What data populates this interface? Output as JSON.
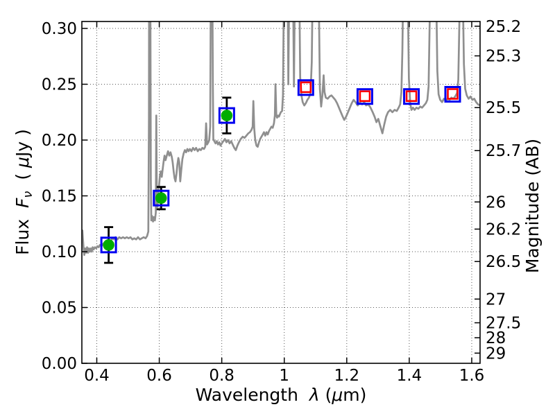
{
  "chart_data": {
    "type": "line",
    "title": "",
    "xlabel_parts": [
      {
        "t": "Wavelength  "
      },
      {
        "t": "λ",
        "i": 1
      },
      {
        "t": " ("
      },
      {
        "t": "μ",
        "i": 1
      },
      {
        "t": "m)"
      }
    ],
    "ylabel_left_parts": [
      {
        "t": "Flux  "
      },
      {
        "t": "F",
        "i": 1
      },
      {
        "t": "ν",
        "s": 1
      },
      {
        "t": "  ( "
      },
      {
        "t": "μ",
        "i": 1
      },
      {
        "t": "Jy )"
      }
    ],
    "ylabel_right": "Magnitude (AB)",
    "xlim": [
      0.352,
      1.627
    ],
    "ylim_flux": [
      0,
      0.306
    ],
    "grid": true,
    "legend": false,
    "ab_zeropoint_ujy": 23.9,
    "x_ticks": [
      {
        "v": 0.4,
        "label": "0.4"
      },
      {
        "v": 0.6,
        "label": "0.6"
      },
      {
        "v": 0.8,
        "label": "0.8"
      },
      {
        "v": 1.0,
        "label": "1"
      },
      {
        "v": 1.2,
        "label": "1.2"
      },
      {
        "v": 1.4,
        "label": "1.4"
      },
      {
        "v": 1.6,
        "label": "1.6"
      }
    ],
    "flux_ticks": [
      {
        "v": 0.0,
        "label": "0.00"
      },
      {
        "v": 0.05,
        "label": "0.05"
      },
      {
        "v": 0.1,
        "label": "0.10"
      },
      {
        "v": 0.15,
        "label": "0.15"
      },
      {
        "v": 0.2,
        "label": "0.20"
      },
      {
        "v": 0.25,
        "label": "0.25"
      },
      {
        "v": 0.3,
        "label": "0.30"
      }
    ],
    "mag_ticks": [
      {
        "v": 25.2,
        "label": "25.2"
      },
      {
        "v": 25.3,
        "label": "25.3"
      },
      {
        "v": 25.5,
        "label": "25.5"
      },
      {
        "v": 25.7,
        "label": "25.7"
      },
      {
        "v": 26,
        "label": "26"
      },
      {
        "v": 26.2,
        "label": "26.2"
      },
      {
        "v": 26.5,
        "label": "26.5"
      },
      {
        "v": 27,
        "label": "27"
      },
      {
        "v": 27.5,
        "label": "27.5"
      },
      {
        "v": 28,
        "label": "28"
      },
      {
        "v": 29,
        "label": "29"
      }
    ],
    "colors": {
      "spectrum": "#8f8f8f",
      "blue_square": "#0000f0",
      "green_circle": "#00ad00",
      "red_square": "#ff0000",
      "error_bar": "#000000",
      "grid": "#555555",
      "frame": "#000000",
      "background": "#ffffff"
    },
    "photometry": {
      "observed": [
        {
          "wavelength": 0.438,
          "flux": 0.106,
          "flux_err": 0.016
        },
        {
          "wavelength": 0.606,
          "flux": 0.148,
          "flux_err": 0.01
        },
        {
          "wavelength": 0.816,
          "flux": 0.222,
          "flux_err": 0.016
        }
      ],
      "model_blue_squares": [
        {
          "wavelength": 0.438,
          "flux": 0.106
        },
        {
          "wavelength": 0.606,
          "flux": 0.148
        },
        {
          "wavelength": 0.816,
          "flux": 0.222
        },
        {
          "wavelength": 1.069,
          "flux": 0.247
        },
        {
          "wavelength": 1.258,
          "flux": 0.239
        },
        {
          "wavelength": 1.407,
          "flux": 0.239
        },
        {
          "wavelength": 1.539,
          "flux": 0.241
        }
      ],
      "model_red_squares": [
        {
          "wavelength": 1.069,
          "flux": 0.247
        },
        {
          "wavelength": 1.258,
          "flux": 0.239
        },
        {
          "wavelength": 1.407,
          "flux": 0.239
        },
        {
          "wavelength": 1.539,
          "flux": 0.241
        }
      ]
    },
    "spectrum": [
      [
        0.352,
        0.108
      ],
      [
        0.354,
        0.119
      ],
      [
        0.356,
        0.11
      ],
      [
        0.358,
        0.102
      ],
      [
        0.36,
        0.097
      ],
      [
        0.363,
        0.103
      ],
      [
        0.366,
        0.099
      ],
      [
        0.369,
        0.104
      ],
      [
        0.372,
        0.099
      ],
      [
        0.375,
        0.103
      ],
      [
        0.378,
        0.1
      ],
      [
        0.381,
        0.103
      ],
      [
        0.384,
        0.1
      ],
      [
        0.387,
        0.104
      ],
      [
        0.39,
        0.102
      ],
      [
        0.394,
        0.104
      ],
      [
        0.398,
        0.103
      ],
      [
        0.402,
        0.105
      ],
      [
        0.406,
        0.104
      ],
      [
        0.41,
        0.106
      ],
      [
        0.415,
        0.105
      ],
      [
        0.42,
        0.107
      ],
      [
        0.425,
        0.105
      ],
      [
        0.43,
        0.106
      ],
      [
        0.435,
        0.106
      ],
      [
        0.44,
        0.108
      ],
      [
        0.445,
        0.11
      ],
      [
        0.45,
        0.112
      ],
      [
        0.455,
        0.111
      ],
      [
        0.46,
        0.113
      ],
      [
        0.466,
        0.111
      ],
      [
        0.472,
        0.113
      ],
      [
        0.478,
        0.112
      ],
      [
        0.484,
        0.113
      ],
      [
        0.49,
        0.112
      ],
      [
        0.496,
        0.113
      ],
      [
        0.502,
        0.112
      ],
      [
        0.508,
        0.113
      ],
      [
        0.514,
        0.111
      ],
      [
        0.52,
        0.112
      ],
      [
        0.526,
        0.111
      ],
      [
        0.532,
        0.113
      ],
      [
        0.538,
        0.111
      ],
      [
        0.544,
        0.112
      ],
      [
        0.55,
        0.113
      ],
      [
        0.556,
        0.112
      ],
      [
        0.561,
        0.114
      ],
      [
        0.565,
        0.118
      ],
      [
        0.567,
        0.22
      ],
      [
        0.5675,
        0.34
      ],
      [
        0.5715,
        0.34
      ],
      [
        0.573,
        0.165
      ],
      [
        0.5745,
        0.128
      ],
      [
        0.577,
        0.132
      ],
      [
        0.58,
        0.127
      ],
      [
        0.583,
        0.131
      ],
      [
        0.586,
        0.128
      ],
      [
        0.589,
        0.135
      ],
      [
        0.5905,
        0.222
      ],
      [
        0.592,
        0.152
      ],
      [
        0.594,
        0.14
      ],
      [
        0.596,
        0.149
      ],
      [
        0.599,
        0.158
      ],
      [
        0.602,
        0.168
      ],
      [
        0.605,
        0.172
      ],
      [
        0.608,
        0.167
      ],
      [
        0.611,
        0.174
      ],
      [
        0.614,
        0.181
      ],
      [
        0.617,
        0.186
      ],
      [
        0.62,
        0.182
      ],
      [
        0.624,
        0.186
      ],
      [
        0.628,
        0.19
      ],
      [
        0.632,
        0.186
      ],
      [
        0.636,
        0.189
      ],
      [
        0.64,
        0.185
      ],
      [
        0.643,
        0.18
      ],
      [
        0.646,
        0.172
      ],
      [
        0.649,
        0.166
      ],
      [
        0.652,
        0.163
      ],
      [
        0.655,
        0.17
      ],
      [
        0.658,
        0.178
      ],
      [
        0.661,
        0.184
      ],
      [
        0.664,
        0.18
      ],
      [
        0.667,
        0.163
      ],
      [
        0.67,
        0.172
      ],
      [
        0.674,
        0.183
      ],
      [
        0.678,
        0.188
      ],
      [
        0.682,
        0.191
      ],
      [
        0.686,
        0.189
      ],
      [
        0.69,
        0.192
      ],
      [
        0.694,
        0.19
      ],
      [
        0.698,
        0.192
      ],
      [
        0.703,
        0.19
      ],
      [
        0.708,
        0.193
      ],
      [
        0.713,
        0.191
      ],
      [
        0.718,
        0.193
      ],
      [
        0.723,
        0.19
      ],
      [
        0.728,
        0.192
      ],
      [
        0.733,
        0.191
      ],
      [
        0.738,
        0.193
      ],
      [
        0.743,
        0.192
      ],
      [
        0.747,
        0.194
      ],
      [
        0.75,
        0.215
      ],
      [
        0.753,
        0.196
      ],
      [
        0.757,
        0.198
      ],
      [
        0.76,
        0.2
      ],
      [
        0.763,
        0.212
      ],
      [
        0.765,
        0.34
      ],
      [
        0.77,
        0.34
      ],
      [
        0.7715,
        0.25
      ],
      [
        0.773,
        0.201
      ],
      [
        0.776,
        0.199
      ],
      [
        0.78,
        0.197
      ],
      [
        0.784,
        0.199
      ],
      [
        0.788,
        0.196
      ],
      [
        0.792,
        0.198
      ],
      [
        0.796,
        0.195
      ],
      [
        0.8,
        0.197
      ],
      [
        0.805,
        0.199
      ],
      [
        0.81,
        0.201
      ],
      [
        0.815,
        0.198
      ],
      [
        0.82,
        0.2
      ],
      [
        0.825,
        0.197
      ],
      [
        0.83,
        0.199
      ],
      [
        0.835,
        0.196
      ],
      [
        0.84,
        0.193
      ],
      [
        0.845,
        0.191
      ],
      [
        0.85,
        0.195
      ],
      [
        0.855,
        0.198
      ],
      [
        0.861,
        0.201
      ],
      [
        0.867,
        0.203
      ],
      [
        0.873,
        0.202
      ],
      [
        0.879,
        0.204
      ],
      [
        0.885,
        0.206
      ],
      [
        0.89,
        0.207
      ],
      [
        0.895,
        0.209
      ],
      [
        0.899,
        0.212
      ],
      [
        0.901,
        0.235
      ],
      [
        0.904,
        0.21
      ],
      [
        0.907,
        0.2
      ],
      [
        0.911,
        0.195
      ],
      [
        0.915,
        0.194
      ],
      [
        0.919,
        0.198
      ],
      [
        0.923,
        0.201
      ],
      [
        0.927,
        0.203
      ],
      [
        0.931,
        0.205
      ],
      [
        0.935,
        0.207
      ],
      [
        0.939,
        0.204
      ],
      [
        0.943,
        0.207
      ],
      [
        0.947,
        0.205
      ],
      [
        0.951,
        0.208
      ],
      [
        0.955,
        0.21
      ],
      [
        0.959,
        0.212
      ],
      [
        0.963,
        0.211
      ],
      [
        0.967,
        0.215
      ],
      [
        0.97,
        0.222
      ],
      [
        0.972,
        0.25
      ],
      [
        0.9745,
        0.222
      ],
      [
        0.977,
        0.22
      ],
      [
        0.98,
        0.222
      ],
      [
        0.983,
        0.221
      ],
      [
        0.986,
        0.223
      ],
      [
        0.989,
        0.225
      ],
      [
        0.993,
        0.226
      ],
      [
        0.996,
        0.24
      ],
      [
        0.999,
        0.34
      ],
      [
        1.011,
        0.34
      ],
      [
        1.013,
        0.25
      ],
      [
        1.016,
        0.34
      ],
      [
        1.028,
        0.34
      ],
      [
        1.031,
        0.248
      ],
      [
        1.034,
        0.34
      ],
      [
        1.048,
        0.34
      ],
      [
        1.051,
        0.256
      ],
      [
        1.055,
        0.24
      ],
      [
        1.059,
        0.234
      ],
      [
        1.064,
        0.231
      ],
      [
        1.069,
        0.233
      ],
      [
        1.074,
        0.236
      ],
      [
        1.079,
        0.238
      ],
      [
        1.084,
        0.242
      ],
      [
        1.088,
        0.27
      ],
      [
        1.091,
        0.34
      ],
      [
        1.11,
        0.34
      ],
      [
        1.114,
        0.246
      ],
      [
        1.118,
        0.23
      ],
      [
        1.122,
        0.24
      ],
      [
        1.126,
        0.258
      ],
      [
        1.129,
        0.243
      ],
      [
        1.133,
        0.238
      ],
      [
        1.139,
        0.237
      ],
      [
        1.145,
        0.239
      ],
      [
        1.151,
        0.24
      ],
      [
        1.157,
        0.238
      ],
      [
        1.163,
        0.236
      ],
      [
        1.169,
        0.233
      ],
      [
        1.175,
        0.229
      ],
      [
        1.181,
        0.225
      ],
      [
        1.187,
        0.221
      ],
      [
        1.192,
        0.218
      ],
      [
        1.198,
        0.221
      ],
      [
        1.204,
        0.225
      ],
      [
        1.21,
        0.229
      ],
      [
        1.216,
        0.233
      ],
      [
        1.222,
        0.236
      ],
      [
        1.228,
        0.234
      ],
      [
        1.235,
        0.231
      ],
      [
        1.242,
        0.234
      ],
      [
        1.249,
        0.232
      ],
      [
        1.256,
        0.234
      ],
      [
        1.262,
        0.231
      ],
      [
        1.269,
        0.232
      ],
      [
        1.276,
        0.229
      ],
      [
        1.283,
        0.225
      ],
      [
        1.289,
        0.221
      ],
      [
        1.295,
        0.216
      ],
      [
        1.301,
        0.219
      ],
      [
        1.307,
        0.213
      ],
      [
        1.314,
        0.206
      ],
      [
        1.32,
        0.214
      ],
      [
        1.326,
        0.221
      ],
      [
        1.332,
        0.225
      ],
      [
        1.339,
        0.227
      ],
      [
        1.346,
        0.225
      ],
      [
        1.353,
        0.227
      ],
      [
        1.36,
        0.226
      ],
      [
        1.366,
        0.229
      ],
      [
        1.371,
        0.232
      ],
      [
        1.375,
        0.243
      ],
      [
        1.378,
        0.28
      ],
      [
        1.381,
        0.34
      ],
      [
        1.395,
        0.34
      ],
      [
        1.399,
        0.255
      ],
      [
        1.403,
        0.233
      ],
      [
        1.407,
        0.227
      ],
      [
        1.412,
        0.229
      ],
      [
        1.417,
        0.227
      ],
      [
        1.423,
        0.229
      ],
      [
        1.429,
        0.228
      ],
      [
        1.435,
        0.23
      ],
      [
        1.441,
        0.229
      ],
      [
        1.447,
        0.231
      ],
      [
        1.453,
        0.233
      ],
      [
        1.458,
        0.236
      ],
      [
        1.462,
        0.248
      ],
      [
        1.465,
        0.3
      ],
      [
        1.468,
        0.34
      ],
      [
        1.486,
        0.34
      ],
      [
        1.49,
        0.262
      ],
      [
        1.494,
        0.241
      ],
      [
        1.499,
        0.236
      ],
      [
        1.505,
        0.234
      ],
      [
        1.511,
        0.237
      ],
      [
        1.517,
        0.235
      ],
      [
        1.523,
        0.237
      ],
      [
        1.529,
        0.236
      ],
      [
        1.535,
        0.238
      ],
      [
        1.541,
        0.237
      ],
      [
        1.547,
        0.239
      ],
      [
        1.553,
        0.242
      ],
      [
        1.557,
        0.254
      ],
      [
        1.56,
        0.3
      ],
      [
        1.563,
        0.34
      ],
      [
        1.571,
        0.34
      ],
      [
        1.575,
        0.268
      ],
      [
        1.579,
        0.246
      ],
      [
        1.584,
        0.24
      ],
      [
        1.59,
        0.237
      ],
      [
        1.596,
        0.239
      ],
      [
        1.602,
        0.236
      ],
      [
        1.608,
        0.237
      ],
      [
        1.614,
        0.234
      ],
      [
        1.62,
        0.232
      ],
      [
        1.627,
        0.231
      ]
    ]
  }
}
